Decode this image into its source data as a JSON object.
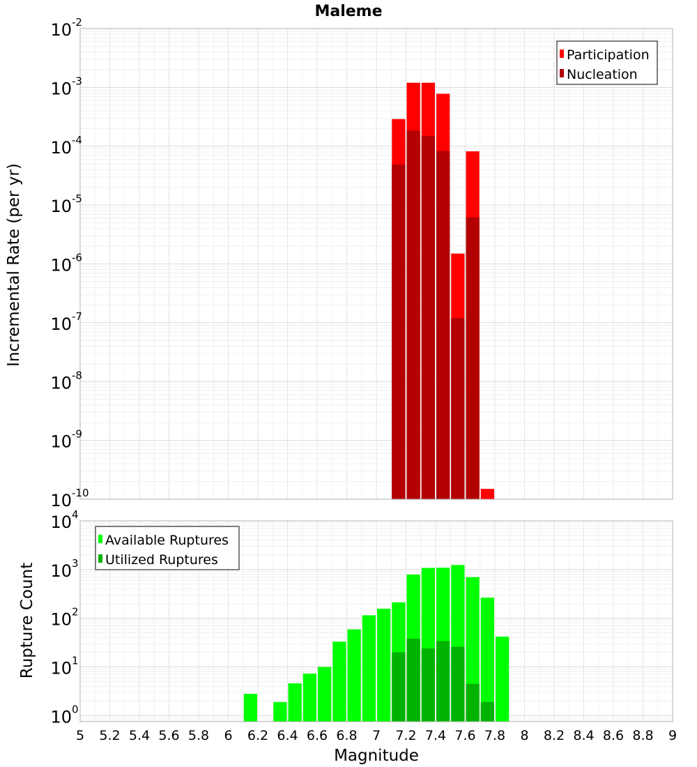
{
  "chart_data": [
    {
      "type": "bar",
      "title": "Maleme",
      "ylabel": "Incremental Rate (per yr)",
      "yscale": "log",
      "ylim": [
        1e-10,
        0.01
      ],
      "xlim": [
        5,
        9
      ],
      "grid": true,
      "legend_position": "top-right",
      "y_ticks": [
        {
          "base": "10",
          "exp": "-2",
          "value": 0.01
        },
        {
          "base": "10",
          "exp": "-3",
          "value": 0.001
        },
        {
          "base": "10",
          "exp": "-4",
          "value": 0.0001
        },
        {
          "base": "10",
          "exp": "-5",
          "value": 1e-05
        },
        {
          "base": "10",
          "exp": "-6",
          "value": 1e-06
        },
        {
          "base": "10",
          "exp": "-7",
          "value": 1e-07
        },
        {
          "base": "10",
          "exp": "-8",
          "value": 1e-08
        },
        {
          "base": "10",
          "exp": "-9",
          "value": 1e-09
        },
        {
          "base": "10",
          "exp": "-10",
          "value": 1e-10
        }
      ],
      "series": [
        {
          "name": "Participation",
          "color": "#ff0000",
          "x": [
            7.15,
            7.25,
            7.35,
            7.45,
            7.55,
            7.65,
            7.75
          ],
          "values": [
            0.00029,
            0.0012,
            0.0012,
            0.00078,
            1.5e-06,
            8.2e-05,
            1.5e-10
          ]
        },
        {
          "name": "Nucleation",
          "color": "#b30000",
          "x": [
            7.15,
            7.25,
            7.35,
            7.45,
            7.55,
            7.65
          ],
          "values": [
            4.9e-05,
            0.000185,
            0.00015,
            8.3e-05,
            1.2e-07,
            6.2e-06
          ]
        }
      ]
    },
    {
      "type": "bar",
      "title": "",
      "xlabel": "Magnitude",
      "ylabel": "Rupture Count",
      "yscale": "log",
      "ylim": [
        0.75,
        10000
      ],
      "xlim": [
        5,
        9
      ],
      "grid": true,
      "legend_position": "top-left",
      "x_ticks": [
        "5",
        "5.2",
        "5.4",
        "5.6",
        "5.8",
        "6",
        "6.2",
        "6.4",
        "6.6",
        "6.8",
        "7",
        "7.2",
        "7.4",
        "7.6",
        "7.8",
        "8",
        "8.2",
        "8.4",
        "8.6",
        "8.8",
        "9"
      ],
      "y_ticks": [
        {
          "base": "10",
          "exp": "4",
          "value": 10000
        },
        {
          "base": "10",
          "exp": "3",
          "value": 1000
        },
        {
          "base": "10",
          "exp": "2",
          "value": 100
        },
        {
          "base": "10",
          "exp": "1",
          "value": 10
        },
        {
          "base": "10",
          "exp": "0",
          "value": 1
        }
      ],
      "series": [
        {
          "name": "Available Ruptures",
          "color": "#00ff00",
          "x": [
            6.15,
            6.35,
            6.45,
            6.55,
            6.65,
            6.75,
            6.85,
            6.95,
            7.05,
            7.15,
            7.25,
            7.35,
            7.45,
            7.55,
            7.65,
            7.75,
            7.85
          ],
          "values": [
            2.8,
            1.9,
            4.6,
            7.3,
            10,
            33,
            59,
            115,
            157,
            212,
            790,
            1080,
            1090,
            1240,
            700,
            265,
            42
          ]
        },
        {
          "name": "Utilized Ruptures",
          "color": "#00b300",
          "x": [
            7.15,
            7.25,
            7.35,
            7.45,
            7.55,
            7.65,
            7.75
          ],
          "values": [
            20,
            38,
            24,
            34,
            26,
            4.5,
            1.9
          ]
        }
      ]
    }
  ]
}
